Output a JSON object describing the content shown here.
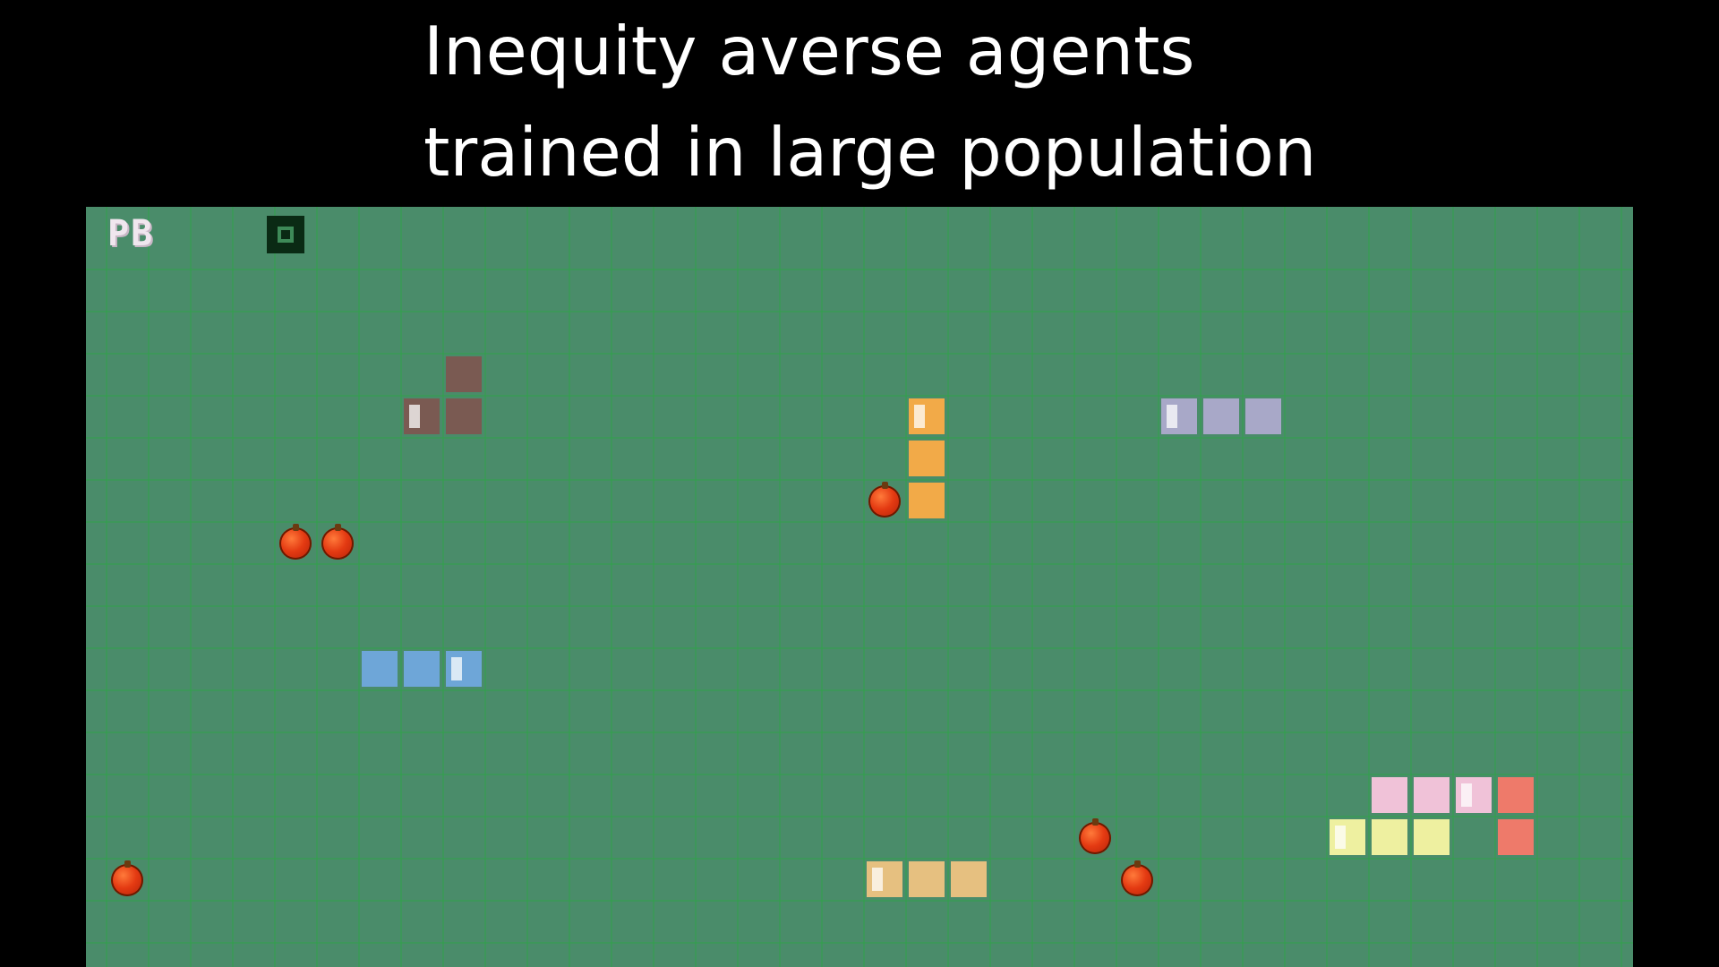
{
  "title": {
    "line1": "Inequity averse agents",
    "line2": "trained in large population"
  },
  "hud": {
    "score_label": "PB",
    "indicator_icon": "square-outline-icon"
  },
  "colors": {
    "background": "#000000",
    "board": "#4a8c6a",
    "grid_line": "#2fa548",
    "apple": "#e43a12"
  },
  "grid": {
    "columns": 36,
    "rows": 18
  },
  "agents": [
    {
      "name": "agent-brown",
      "color": "#7a5a52",
      "cells": [
        [
          8,
          2
        ],
        [
          8,
          3
        ],
        [
          7,
          3
        ]
      ],
      "head": 2
    },
    {
      "name": "agent-orange",
      "color": "#f2aa48",
      "cells": [
        [
          19,
          3
        ],
        [
          19,
          4
        ],
        [
          19,
          5
        ]
      ],
      "head": 0
    },
    {
      "name": "agent-lavender",
      "color": "#a8a8c8",
      "cells": [
        [
          25,
          3
        ],
        [
          26,
          3
        ],
        [
          27,
          3
        ]
      ],
      "head": 0
    },
    {
      "name": "agent-blue",
      "color": "#6ea6d8",
      "cells": [
        [
          6,
          9
        ],
        [
          7,
          9
        ],
        [
          8,
          9
        ]
      ],
      "head": 2
    },
    {
      "name": "agent-pink",
      "color": "#f0c2d8",
      "cells": [
        [
          30,
          12
        ],
        [
          31,
          12
        ],
        [
          32,
          12
        ]
      ],
      "head": 2
    },
    {
      "name": "agent-salmon",
      "color": "#ee7a6a",
      "cells": [
        [
          33,
          12
        ],
        [
          33,
          13
        ]
      ],
      "head": -1
    },
    {
      "name": "agent-light-yellow",
      "color": "#eef0a0",
      "cells": [
        [
          29,
          13
        ],
        [
          30,
          13
        ],
        [
          31,
          13
        ]
      ],
      "head": 0
    },
    {
      "name": "agent-tan",
      "color": "#e6c080",
      "cells": [
        [
          18,
          14
        ],
        [
          19,
          14
        ],
        [
          20,
          14
        ]
      ],
      "head": 0
    }
  ],
  "apples": [
    [
      4,
      6
    ],
    [
      5,
      6
    ],
    [
      18,
      5
    ],
    [
      0,
      14
    ],
    [
      23,
      13
    ],
    [
      24,
      14
    ]
  ]
}
